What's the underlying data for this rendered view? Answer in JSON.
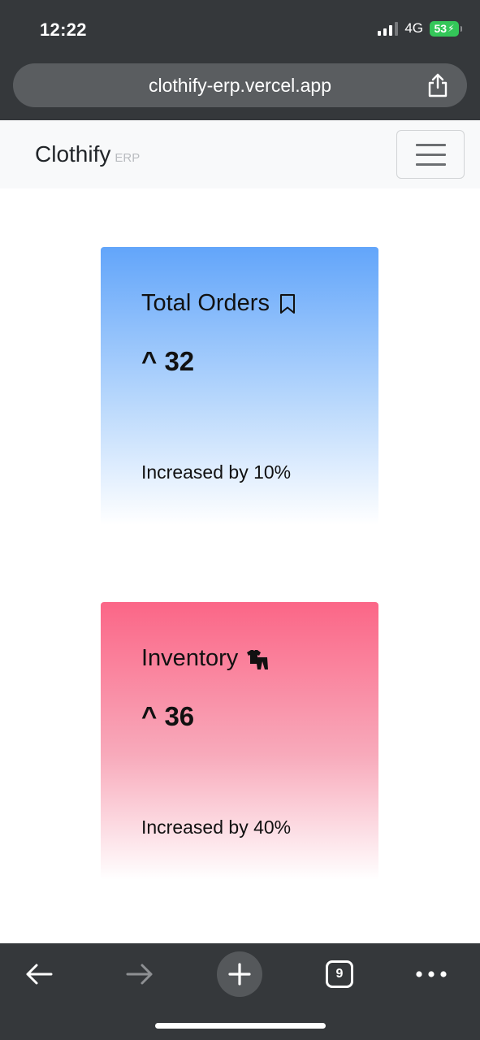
{
  "status_bar": {
    "time": "12:22",
    "network": "4G",
    "battery": "53",
    "battery_color": "#34c759"
  },
  "browser": {
    "url": "clothify-erp.vercel.app",
    "share_icon": "share-icon",
    "toolbar": {
      "back_icon": "arrow-left-icon",
      "forward_icon": "arrow-right-icon",
      "new_tab_icon": "plus-icon",
      "tab_count": "9",
      "more_icon": "more-dots-icon"
    }
  },
  "navbar": {
    "brand": "Clothify",
    "brand_sub": "ERP",
    "toggle_icon": "hamburger-icon"
  },
  "cards": [
    {
      "title": "Total Orders",
      "icon": "bookmark-icon",
      "value": "^ 32",
      "note": "Increased by 10%",
      "color": "#62a5fa"
    },
    {
      "title": "Inventory",
      "icon": "clothes-icon",
      "value": "^ 36",
      "note": "Increased by 40%",
      "color": "#fb6687"
    }
  ]
}
